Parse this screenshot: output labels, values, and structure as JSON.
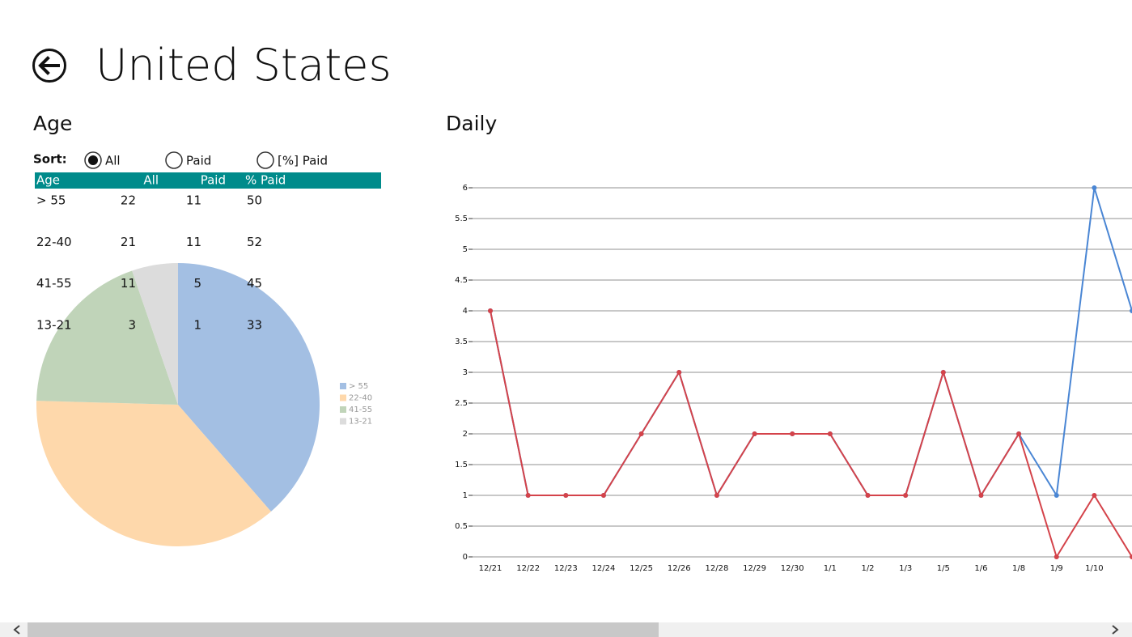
{
  "header": {
    "title": "United States"
  },
  "age": {
    "title": "Age",
    "sort_label": "Sort:",
    "sort_options": [
      "All",
      "Paid",
      "[%] Paid"
    ],
    "selected": 0,
    "table": {
      "columns": [
        "Age",
        "All",
        "Paid",
        "% Paid"
      ],
      "rows": [
        [
          "> 55",
          22,
          11,
          50
        ],
        [
          "22-40",
          21,
          11,
          52
        ],
        [
          "41-55",
          11,
          5,
          45
        ],
        [
          "13-21",
          3,
          1,
          33
        ]
      ]
    }
  },
  "daily": {
    "title": "Daily"
  },
  "chart_data": [
    {
      "type": "pie",
      "categories": [
        "> 55",
        "22-40",
        "41-55",
        "13-21"
      ],
      "values": [
        22,
        21,
        11,
        3
      ],
      "colors": [
        "#a3bfe3",
        "#fed8ab",
        "#c0d4b9",
        "#dcdcdc"
      ],
      "legend": "right"
    },
    {
      "type": "line",
      "categories": [
        "12/21",
        "12/22",
        "12/23",
        "12/24",
        "12/25",
        "12/26",
        "12/28",
        "12/29",
        "12/30",
        "1/1",
        "1/2",
        "1/3",
        "1/5",
        "1/6",
        "1/8",
        "1/9",
        "1/10",
        null
      ],
      "series": [
        {
          "color": "#4a86d4",
          "values": [
            4,
            1,
            1,
            1,
            2,
            3,
            1,
            2,
            2,
            2,
            1,
            1,
            3,
            1,
            2,
            1,
            6,
            4
          ]
        },
        {
          "color": "#d4434a",
          "values": [
            4,
            1,
            1,
            1,
            2,
            3,
            1,
            2,
            2,
            2,
            1,
            1,
            3,
            1,
            2,
            0,
            1,
            0
          ]
        }
      ],
      "ylim": [
        0,
        6
      ],
      "yticks": [
        0,
        0.5,
        1,
        1.5,
        2,
        2.5,
        3,
        3.5,
        4,
        4.5,
        5,
        5.5,
        6
      ],
      "grid": true
    }
  ]
}
